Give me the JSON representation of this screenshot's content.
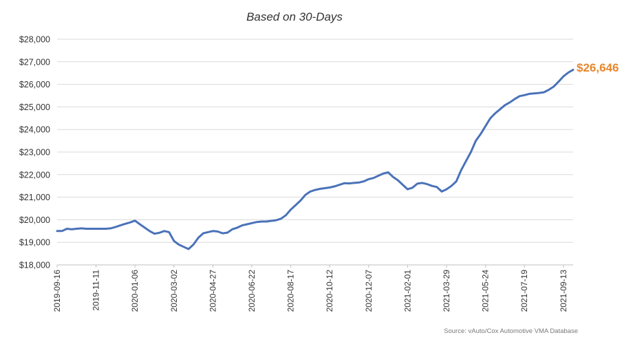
{
  "chart_data": {
    "type": "line",
    "title": "Based on 30-Days",
    "xlabel": "",
    "ylabel": "",
    "ylim": [
      18000,
      28000
    ],
    "y_ticks": [
      18000,
      19000,
      20000,
      21000,
      22000,
      23000,
      24000,
      25000,
      26000,
      27000,
      28000
    ],
    "y_tick_labels": [
      "$18,000",
      "$19,000",
      "$20,000",
      "$21,000",
      "$22,000",
      "$23,000",
      "$24,000",
      "$25,000",
      "$26,000",
      "$27,000",
      "$28,000"
    ],
    "x_tick_labels": [
      "2019-09-16",
      "2019-11-11",
      "2020-01-06",
      "2020-03-02",
      "2020-04-27",
      "2020-06-22",
      "2020-08-17",
      "2020-10-12",
      "2020-12-07",
      "2021-02-01",
      "2021-03-29",
      "2021-05-24",
      "2021-07-19",
      "2021-09-13"
    ],
    "grid": "horizontal",
    "series": [
      {
        "color": "#4a72b8",
        "x": [
          "2019-09-16",
          "2019-09-23",
          "2019-09-30",
          "2019-10-07",
          "2019-10-14",
          "2019-10-21",
          "2019-10-28",
          "2019-11-04",
          "2019-11-11",
          "2019-11-18",
          "2019-11-25",
          "2019-12-02",
          "2019-12-09",
          "2019-12-16",
          "2019-12-23",
          "2019-12-30",
          "2020-01-06",
          "2020-01-13",
          "2020-01-20",
          "2020-01-27",
          "2020-02-03",
          "2020-02-10",
          "2020-02-17",
          "2020-02-24",
          "2020-03-02",
          "2020-03-09",
          "2020-03-16",
          "2020-03-23",
          "2020-03-30",
          "2020-04-06",
          "2020-04-13",
          "2020-04-20",
          "2020-04-27",
          "2020-05-04",
          "2020-05-11",
          "2020-05-18",
          "2020-05-25",
          "2020-06-01",
          "2020-06-08",
          "2020-06-15",
          "2020-06-22",
          "2020-06-29",
          "2020-07-06",
          "2020-07-13",
          "2020-07-20",
          "2020-07-27",
          "2020-08-03",
          "2020-08-10",
          "2020-08-17",
          "2020-08-24",
          "2020-08-31",
          "2020-09-07",
          "2020-09-14",
          "2020-09-21",
          "2020-09-28",
          "2020-10-05",
          "2020-10-12",
          "2020-10-19",
          "2020-10-26",
          "2020-11-02",
          "2020-11-09",
          "2020-11-16",
          "2020-11-23",
          "2020-11-30",
          "2020-12-07",
          "2020-12-14",
          "2020-12-21",
          "2020-12-28",
          "2021-01-04",
          "2021-01-11",
          "2021-01-18",
          "2021-01-25",
          "2021-02-01",
          "2021-02-08",
          "2021-02-15",
          "2021-02-22",
          "2021-03-01",
          "2021-03-08",
          "2021-03-15",
          "2021-03-22",
          "2021-03-29",
          "2021-04-05",
          "2021-04-12",
          "2021-04-19",
          "2021-04-26",
          "2021-05-03",
          "2021-05-10",
          "2021-05-17",
          "2021-05-24",
          "2021-05-31",
          "2021-06-07",
          "2021-06-14",
          "2021-06-21",
          "2021-06-28",
          "2021-07-05",
          "2021-07-12",
          "2021-07-19",
          "2021-07-26",
          "2021-08-02",
          "2021-08-09",
          "2021-08-16",
          "2021-08-23",
          "2021-08-30",
          "2021-09-06",
          "2021-09-13",
          "2021-09-20",
          "2021-09-27"
        ],
        "values": [
          19500,
          19500,
          19600,
          19580,
          19600,
          19620,
          19600,
          19600,
          19600,
          19600,
          19600,
          19620,
          19680,
          19750,
          19820,
          19880,
          19960,
          19800,
          19650,
          19500,
          19380,
          19420,
          19500,
          19450,
          19060,
          18900,
          18800,
          18700,
          18900,
          19200,
          19400,
          19450,
          19500,
          19480,
          19400,
          19430,
          19580,
          19650,
          19750,
          19800,
          19850,
          19900,
          19920,
          19920,
          19950,
          19980,
          20050,
          20200,
          20450,
          20650,
          20850,
          21100,
          21250,
          21320,
          21370,
          21400,
          21430,
          21480,
          21550,
          21620,
          21610,
          21630,
          21650,
          21700,
          21800,
          21850,
          21950,
          22050,
          22100,
          21900,
          21750,
          21550,
          21350,
          21420,
          21600,
          21630,
          21580,
          21500,
          21450,
          21250,
          21350,
          21500,
          21700,
          22200,
          22600,
          23000,
          23500,
          23800,
          24150,
          24500,
          24720,
          24900,
          25080,
          25200,
          25350,
          25480,
          25520,
          25580,
          25600,
          25620,
          25650,
          25760,
          25900,
          26120,
          26350,
          26520,
          26646
        ]
      }
    ],
    "end_label": "$26,646",
    "end_label_color": "#e8862b",
    "source_note": "Source: vAuto/Cox Automotive VMA Database"
  }
}
